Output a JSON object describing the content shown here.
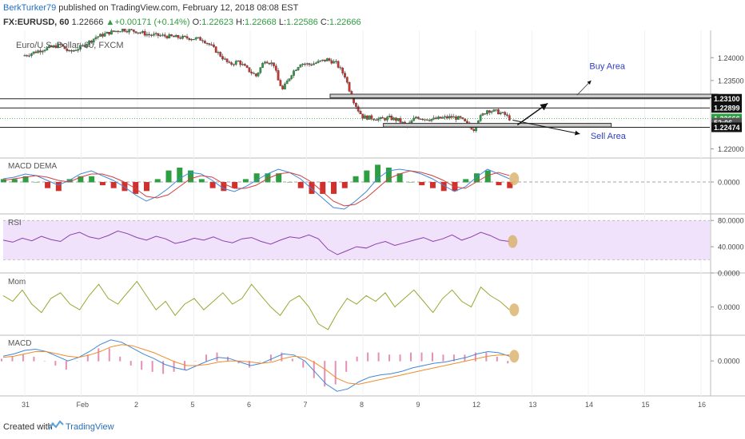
{
  "header": {
    "author": "BerkTurker79",
    "published": "published on TradingView.com, February 12, 2018 08:08 EST",
    "symbol": "FX:EURUSD, 60",
    "last": "1.22666",
    "change": "+0.00171 (+0.14%)",
    "o_label": "O:",
    "o_value": "1.22623",
    "h_label": "H:",
    "h_value": "1.22668",
    "l_label": "L:",
    "l_value": "1.22586",
    "c_label": "C:",
    "c_value": "1.22666"
  },
  "footer": {
    "created": "Created with",
    "brand": "TradingView"
  },
  "colors": {
    "up": "#2e9e42",
    "down": "#d0312d",
    "macd_blue": "#3f88d8",
    "signal_red": "#d04040",
    "rsi_purple": "#8a3fb0",
    "rsi_band": "#f0e2fb",
    "mom_olive": "#9aa631",
    "macd_orange": "#f08c2c",
    "hist_pink": "#e68fb4",
    "zone_fill": "#cccccc",
    "marker": "#d8b068"
  },
  "chart_data": [
    {
      "type": "candlestick",
      "title": "Euro/U.S. Dollar, 60, FXCM",
      "x_ticks": [
        "31",
        "Feb",
        "2",
        "5",
        "6",
        "7",
        "8",
        "9",
        "12",
        "13",
        "14",
        "15",
        "16"
      ],
      "y_ticks": [
        "1.24000",
        "1.23500",
        "1.23100",
        "1.22899",
        "1.22666",
        "52:06",
        "1.22474",
        "1.22000"
      ],
      "ylim": [
        1.218,
        1.246
      ],
      "horizontal_levels": [
        1.231,
        1.22899,
        1.22474
      ],
      "price_path": [
        [
          0,
          1.2405
        ],
        [
          4,
          1.2418
        ],
        [
          8,
          1.2428
        ],
        [
          10,
          1.2412
        ],
        [
          13,
          1.2425
        ],
        [
          16,
          1.2445
        ],
        [
          19,
          1.2455
        ],
        [
          22,
          1.2462
        ],
        [
          25,
          1.2458
        ],
        [
          28,
          1.245
        ],
        [
          31,
          1.2448
        ],
        [
          34,
          1.2445
        ],
        [
          37,
          1.2443
        ],
        [
          40,
          1.244
        ],
        [
          42,
          1.2425
        ],
        [
          44,
          1.2405
        ],
        [
          46,
          1.2385
        ],
        [
          48,
          1.2392
        ],
        [
          50,
          1.2375
        ],
        [
          52,
          1.236
        ],
        [
          54,
          1.2395
        ],
        [
          56,
          1.2385
        ],
        [
          57,
          1.235
        ],
        [
          58,
          1.233
        ],
        [
          60,
          1.2365
        ],
        [
          62,
          1.2388
        ],
        [
          64,
          1.2385
        ],
        [
          66,
          1.239
        ],
        [
          68,
          1.2396
        ],
        [
          70,
          1.2388
        ],
        [
          72,
          1.236
        ],
        [
          73,
          1.233
        ],
        [
          74,
          1.2305
        ],
        [
          75,
          1.2285
        ],
        [
          76,
          1.227
        ],
        [
          78,
          1.2268
        ],
        [
          80,
          1.2265
        ],
        [
          82,
          1.2268
        ],
        [
          84,
          1.2263
        ],
        [
          86,
          1.225
        ],
        [
          88,
          1.227
        ],
        [
          90,
          1.2266
        ],
        [
          92,
          1.2265
        ],
        [
          94,
          1.2268
        ],
        [
          96,
          1.227
        ],
        [
          98,
          1.2266
        ],
        [
          100,
          1.225
        ],
        [
          101,
          1.2243
        ],
        [
          102,
          1.2265
        ],
        [
          104,
          1.2285
        ],
        [
          106,
          1.2282
        ],
        [
          108,
          1.2275
        ],
        [
          109,
          1.22666
        ]
      ],
      "annotations": [
        {
          "text": "Buy Area",
          "kind": "zone",
          "price_top": 1.232,
          "price_bottom": 1.2312,
          "x_from": 63,
          "x_to": 143
        },
        {
          "text": "Sell Area",
          "kind": "zone",
          "price_top": 1.2256,
          "price_bottom": 1.2248,
          "x_from": 74,
          "x_to": 121
        }
      ]
    },
    {
      "type": "line+histogram",
      "title": "MACD DEMA",
      "y_ticks": [
        "0.0000"
      ],
      "ylim": [
        -0.002,
        0.0015
      ],
      "macd": [
        0.0002,
        0.0003,
        0.0005,
        0.0004,
        0.0001,
        -0.0002,
        0.0001,
        0.0005,
        0.0007,
        0.0004,
        0.0001,
        -0.0003,
        -0.0008,
        -0.0012,
        -0.0009,
        -0.0004,
        0.0002,
        0.0006,
        0.0005,
        0.0001,
        -0.0004,
        -0.0006,
        -0.0003,
        0.0001,
        0.0005,
        0.0008,
        0.0006,
        0.0002,
        -0.0004,
        -0.001,
        -0.0016,
        -0.0017,
        -0.0012,
        -0.0006,
        0.0002,
        0.0007,
        0.0008,
        0.0007,
        0.0005,
        0.0002,
        -0.0002,
        -0.0006,
        -0.0003,
        0.0003,
        0.0008,
        0.0005,
        0.0002
      ],
      "signal": [
        0.0001,
        0.0002,
        0.0003,
        0.0004,
        0.0003,
        0.0001,
        0.0,
        0.0003,
        0.0005,
        0.0005,
        0.0003,
        0.0,
        -0.0004,
        -0.0009,
        -0.001,
        -0.0008,
        -0.0003,
        0.0002,
        0.0004,
        0.0003,
        -0.0001,
        -0.0004,
        -0.0004,
        -0.0002,
        0.0002,
        0.0005,
        0.0006,
        0.0004,
        0.0,
        -0.0006,
        -0.0012,
        -0.0015,
        -0.0014,
        -0.001,
        -0.0004,
        0.0002,
        0.0005,
        0.0007,
        0.0006,
        0.0004,
        0.0001,
        -0.0003,
        -0.0004,
        0.0,
        0.0004,
        0.0006,
        0.0004
      ]
    },
    {
      "type": "line",
      "title": "RSI",
      "y_ticks": [
        "80.0000",
        "40.0000",
        "0.0000"
      ],
      "ylim": [
        0,
        90
      ],
      "bands": [
        20,
        80
      ],
      "values": [
        50,
        47,
        53,
        49,
        56,
        51,
        48,
        58,
        62,
        55,
        52,
        57,
        64,
        60,
        54,
        50,
        56,
        52,
        45,
        48,
        53,
        50,
        55,
        49,
        46,
        52,
        54,
        48,
        44,
        50,
        55,
        53,
        58,
        52,
        36,
        28,
        34,
        40,
        38,
        44,
        48,
        42,
        46,
        50,
        54,
        48,
        52,
        58,
        50,
        55,
        62,
        57,
        50,
        48
      ]
    },
    {
      "type": "line",
      "title": "Mom",
      "y_ticks": [
        "0.0000"
      ],
      "ylim": [
        -0.01,
        0.012
      ],
      "values": [
        0.004,
        0.002,
        0.006,
        0.001,
        -0.002,
        0.003,
        0.005,
        0.001,
        -0.001,
        0.004,
        0.008,
        0.003,
        0.001,
        0.005,
        0.009,
        0.004,
        -0.001,
        0.002,
        -0.003,
        0.001,
        0.003,
        -0.001,
        0.002,
        0.005,
        0.001,
        0.003,
        0.008,
        0.004,
        0.0,
        -0.003,
        0.002,
        0.004,
        0.0,
        -0.006,
        -0.008,
        -0.002,
        0.003,
        0.001,
        0.004,
        0.002,
        0.005,
        0.0,
        0.003,
        0.006,
        0.002,
        -0.002,
        0.003,
        0.006,
        0.002,
        0.0,
        0.007,
        0.004,
        0.002,
        -0.001
      ]
    },
    {
      "type": "line+histogram",
      "title": "MACD",
      "y_ticks": [
        "0.0000"
      ],
      "ylim": [
        -0.003,
        0.0022
      ],
      "macd": [
        0.0004,
        0.0006,
        0.0009,
        0.001,
        0.0008,
        0.0004,
        0.0,
        0.0003,
        0.0008,
        0.0014,
        0.0018,
        0.0016,
        0.0011,
        0.0006,
        0.0002,
        -0.0003,
        -0.0006,
        -0.0008,
        -0.0004,
        0.0,
        0.0003,
        0.0002,
        -0.0001,
        -0.0004,
        -0.0002,
        0.0002,
        0.0006,
        0.0005,
        0.0,
        -0.001,
        -0.002,
        -0.0026,
        -0.0024,
        -0.0018,
        -0.0014,
        -0.0012,
        -0.0011,
        -0.0009,
        -0.0006,
        -0.0004,
        -0.0002,
        -0.0001,
        0.0001,
        0.0003,
        0.0006,
        0.0008,
        0.0007,
        0.0004
      ],
      "signal": [
        0.0003,
        0.0004,
        0.0006,
        0.0008,
        0.0008,
        0.0006,
        0.0004,
        0.0003,
        0.0005,
        0.0008,
        0.0012,
        0.0014,
        0.0013,
        0.001,
        0.0007,
        0.0003,
        -0.0001,
        -0.0004,
        -0.0004,
        -0.0003,
        -0.0001,
        0.0,
        0.0,
        -0.0001,
        -0.0002,
        -0.0001,
        0.0002,
        0.0004,
        0.0003,
        -0.0002,
        -0.0008,
        -0.0015,
        -0.0019,
        -0.002,
        -0.0018,
        -0.0016,
        -0.0014,
        -0.0012,
        -0.001,
        -0.0008,
        -0.0006,
        -0.0004,
        -0.0002,
        0.0,
        0.0002,
        0.0004,
        0.0005,
        0.0005
      ]
    }
  ]
}
